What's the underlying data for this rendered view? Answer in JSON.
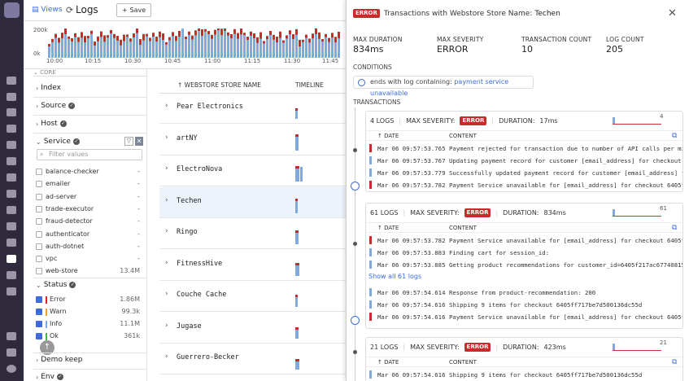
{
  "topbar": {
    "views_label": "Views",
    "title": "Logs",
    "save_label": "Save"
  },
  "histogram": {
    "y_labels": [
      "200k",
      "0k"
    ],
    "x_labels": [
      "10:00",
      "10:15",
      "10:30",
      "10:45",
      "11:00",
      "11:15",
      "11:30",
      "11:45"
    ]
  },
  "facets": {
    "core_label": "CORE",
    "index": "Index",
    "source": "Source",
    "host": "Host",
    "service": "Service",
    "filter_placeholder": "Filter values",
    "service_values": [
      {
        "name": "balance-checker",
        "count": "-"
      },
      {
        "name": "emailer",
        "count": "-"
      },
      {
        "name": "ad-server",
        "count": "-"
      },
      {
        "name": "trade-executor",
        "count": "-"
      },
      {
        "name": "fraud-detector",
        "count": "-"
      },
      {
        "name": "authenticator",
        "count": "-"
      },
      {
        "name": "auth-dotnet",
        "count": "-"
      },
      {
        "name": "vpc",
        "count": "-"
      },
      {
        "name": "web-store",
        "count": "13.4M"
      }
    ],
    "status": "Status",
    "status_values": [
      {
        "name": "Error",
        "count": "1.86M",
        "color": "#c82b2b"
      },
      {
        "name": "Warn",
        "count": "99.3k",
        "color": "#e8a33a"
      },
      {
        "name": "Info",
        "count": "11.1M",
        "color": "#7fa9df"
      },
      {
        "name": "Ok",
        "count": "361k",
        "color": "#4caf50"
      }
    ],
    "demo_keep": "Demo keep",
    "env": "Env"
  },
  "table": {
    "col_store": "WEBSTORE STORE NAME",
    "col_timeline": "TIMELINE",
    "rows": [
      "Pear Electronics",
      "artNY",
      "ElectroNova",
      "Techen",
      "Ringo",
      "FitnessHive",
      "Couche Cache",
      "Jugase",
      "Guerrero-Becker"
    ]
  },
  "panel": {
    "badge": "ERROR",
    "title": "Transactions with Webstore Store Name:",
    "title_value": "Techen",
    "stats": [
      {
        "label": "MAX DURATION",
        "value": "834ms"
      },
      {
        "label": "MAX SEVERITY",
        "value": "ERROR"
      },
      {
        "label": "TRANSACTION COUNT",
        "value": "10"
      },
      {
        "label": "LOG COUNT",
        "value": "205"
      }
    ],
    "conditions_label": "CONDITIONS",
    "condition_prefix": "ends with log containing:",
    "condition_value": "payment service unavailable",
    "transactions_label": "TRANSACTIONS",
    "col_date": "DATE",
    "col_content": "CONTENT",
    "max_severity_label": "MAX SEVERITY:",
    "duration_label": "DURATION:",
    "show_all": "Show all 61 logs",
    "cards": [
      {
        "logs": "4 LOGS",
        "duration": "17ms",
        "spark_n": "4",
        "lines": [
          {
            "date": "Mar 06 09:57:53.765",
            "content": "Payment rejected for transaction due to number of API calls per mi…",
            "level": "error"
          },
          {
            "date": "Mar 06 09:57:53.767",
            "content": "Updating payment record for customer [email_address] for checkout …",
            "level": "info"
          },
          {
            "date": "Mar 06 09:57:53.779",
            "content": "Successfully updated payment record for customer [email_address] f…",
            "level": "info"
          },
          {
            "date": "Mar 06 09:57:53.782",
            "content": "Payment Service unavailable for [email_address] for checkout 6405f…",
            "level": "error"
          }
        ]
      },
      {
        "logs": "61 LOGS",
        "duration": "834ms",
        "spark_n": "61",
        "lines": [
          {
            "date": "Mar 06 09:57:53.782",
            "content": "Payment Service unavailable for [email_address] for checkout 6405f…",
            "level": "error"
          },
          {
            "date": "Mar 06 09:57:53.883",
            "content": "Finding cart for session_id:",
            "level": "info"
          },
          {
            "date": "Mar 06 09:57:53.885",
            "content": "Getting product recommendations for customer_id=6405f217ac67740815…",
            "level": "info"
          }
        ],
        "more_lines": [
          {
            "date": "Mar 06 09:57:54.614",
            "content": "Response from product-recommendation: 200",
            "level": "info"
          },
          {
            "date": "Mar 06 09:57:54.616",
            "content": "Shipping 9 items for checkout 6405ff717be7d500136dc55d",
            "level": "info"
          },
          {
            "date": "Mar 06 09:57:54.616",
            "content": "Payment Service unavailable for [email_address] for checkout 6405f…",
            "level": "error"
          }
        ]
      },
      {
        "logs": "21 LOGS",
        "duration": "423ms",
        "spark_n": "21",
        "lines": [
          {
            "date": "Mar 06 09:57:54.616",
            "content": "Shipping 9 items for checkout 6405ff717be7d500136dc55d",
            "level": "info"
          }
        ]
      }
    ]
  },
  "colors": {
    "error": "#c82b2b",
    "info": "#7fa9df",
    "accent": "#3d6bd9",
    "nav": "#2e2a3b"
  }
}
